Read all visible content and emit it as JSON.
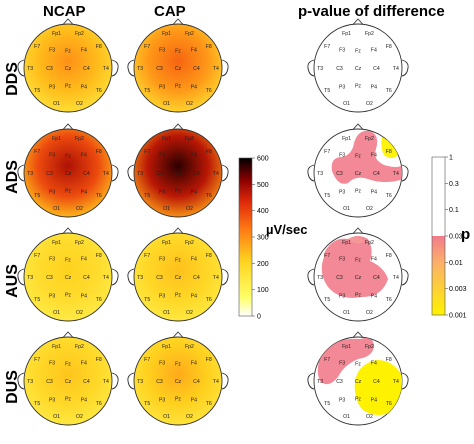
{
  "headers": {
    "col1": "NCAP",
    "col2": "CAP",
    "col3": "p-value of difference"
  },
  "rows": [
    {
      "label": "DDS",
      "ncap_level": 0.45,
      "cap_level": 0.55,
      "sig": "none"
    },
    {
      "label": "ADS",
      "ncap_level": 0.78,
      "cap_level": 0.97,
      "sig": "frontal-right"
    },
    {
      "label": "AUS",
      "ncap_level": 0.3,
      "cap_level": 0.34,
      "sig": "left-central"
    },
    {
      "label": "DUS",
      "ncap_level": 0.33,
      "cap_level": 0.39,
      "sig": "right-central"
    }
  ],
  "electrodes": [
    "Fp1",
    "Fp2",
    "F7",
    "F3",
    "Fz",
    "F4",
    "F8",
    "T3",
    "C3",
    "Cz",
    "C4",
    "T4",
    "T5",
    "P3",
    "Pz",
    "P4",
    "T6",
    "O1",
    "O2"
  ],
  "amplitude_colorbar": {
    "unit_label": "µV/sec",
    "ticks": [
      "600",
      "500",
      "400",
      "300",
      "200",
      "100",
      "0"
    ],
    "range": [
      0,
      600
    ]
  },
  "p_colorbar": {
    "unit_label": "p",
    "ticks": [
      "1",
      "0.3",
      "0.1",
      "0.03",
      "0.01",
      "0.003",
      "0.001"
    ]
  },
  "colors": {
    "low": "#ffff3c",
    "mid": "#ff7a14",
    "high": "#b80000",
    "max": "#200000",
    "sig_pink": "#f27b8b",
    "sig_yellow": "#fff200"
  }
}
